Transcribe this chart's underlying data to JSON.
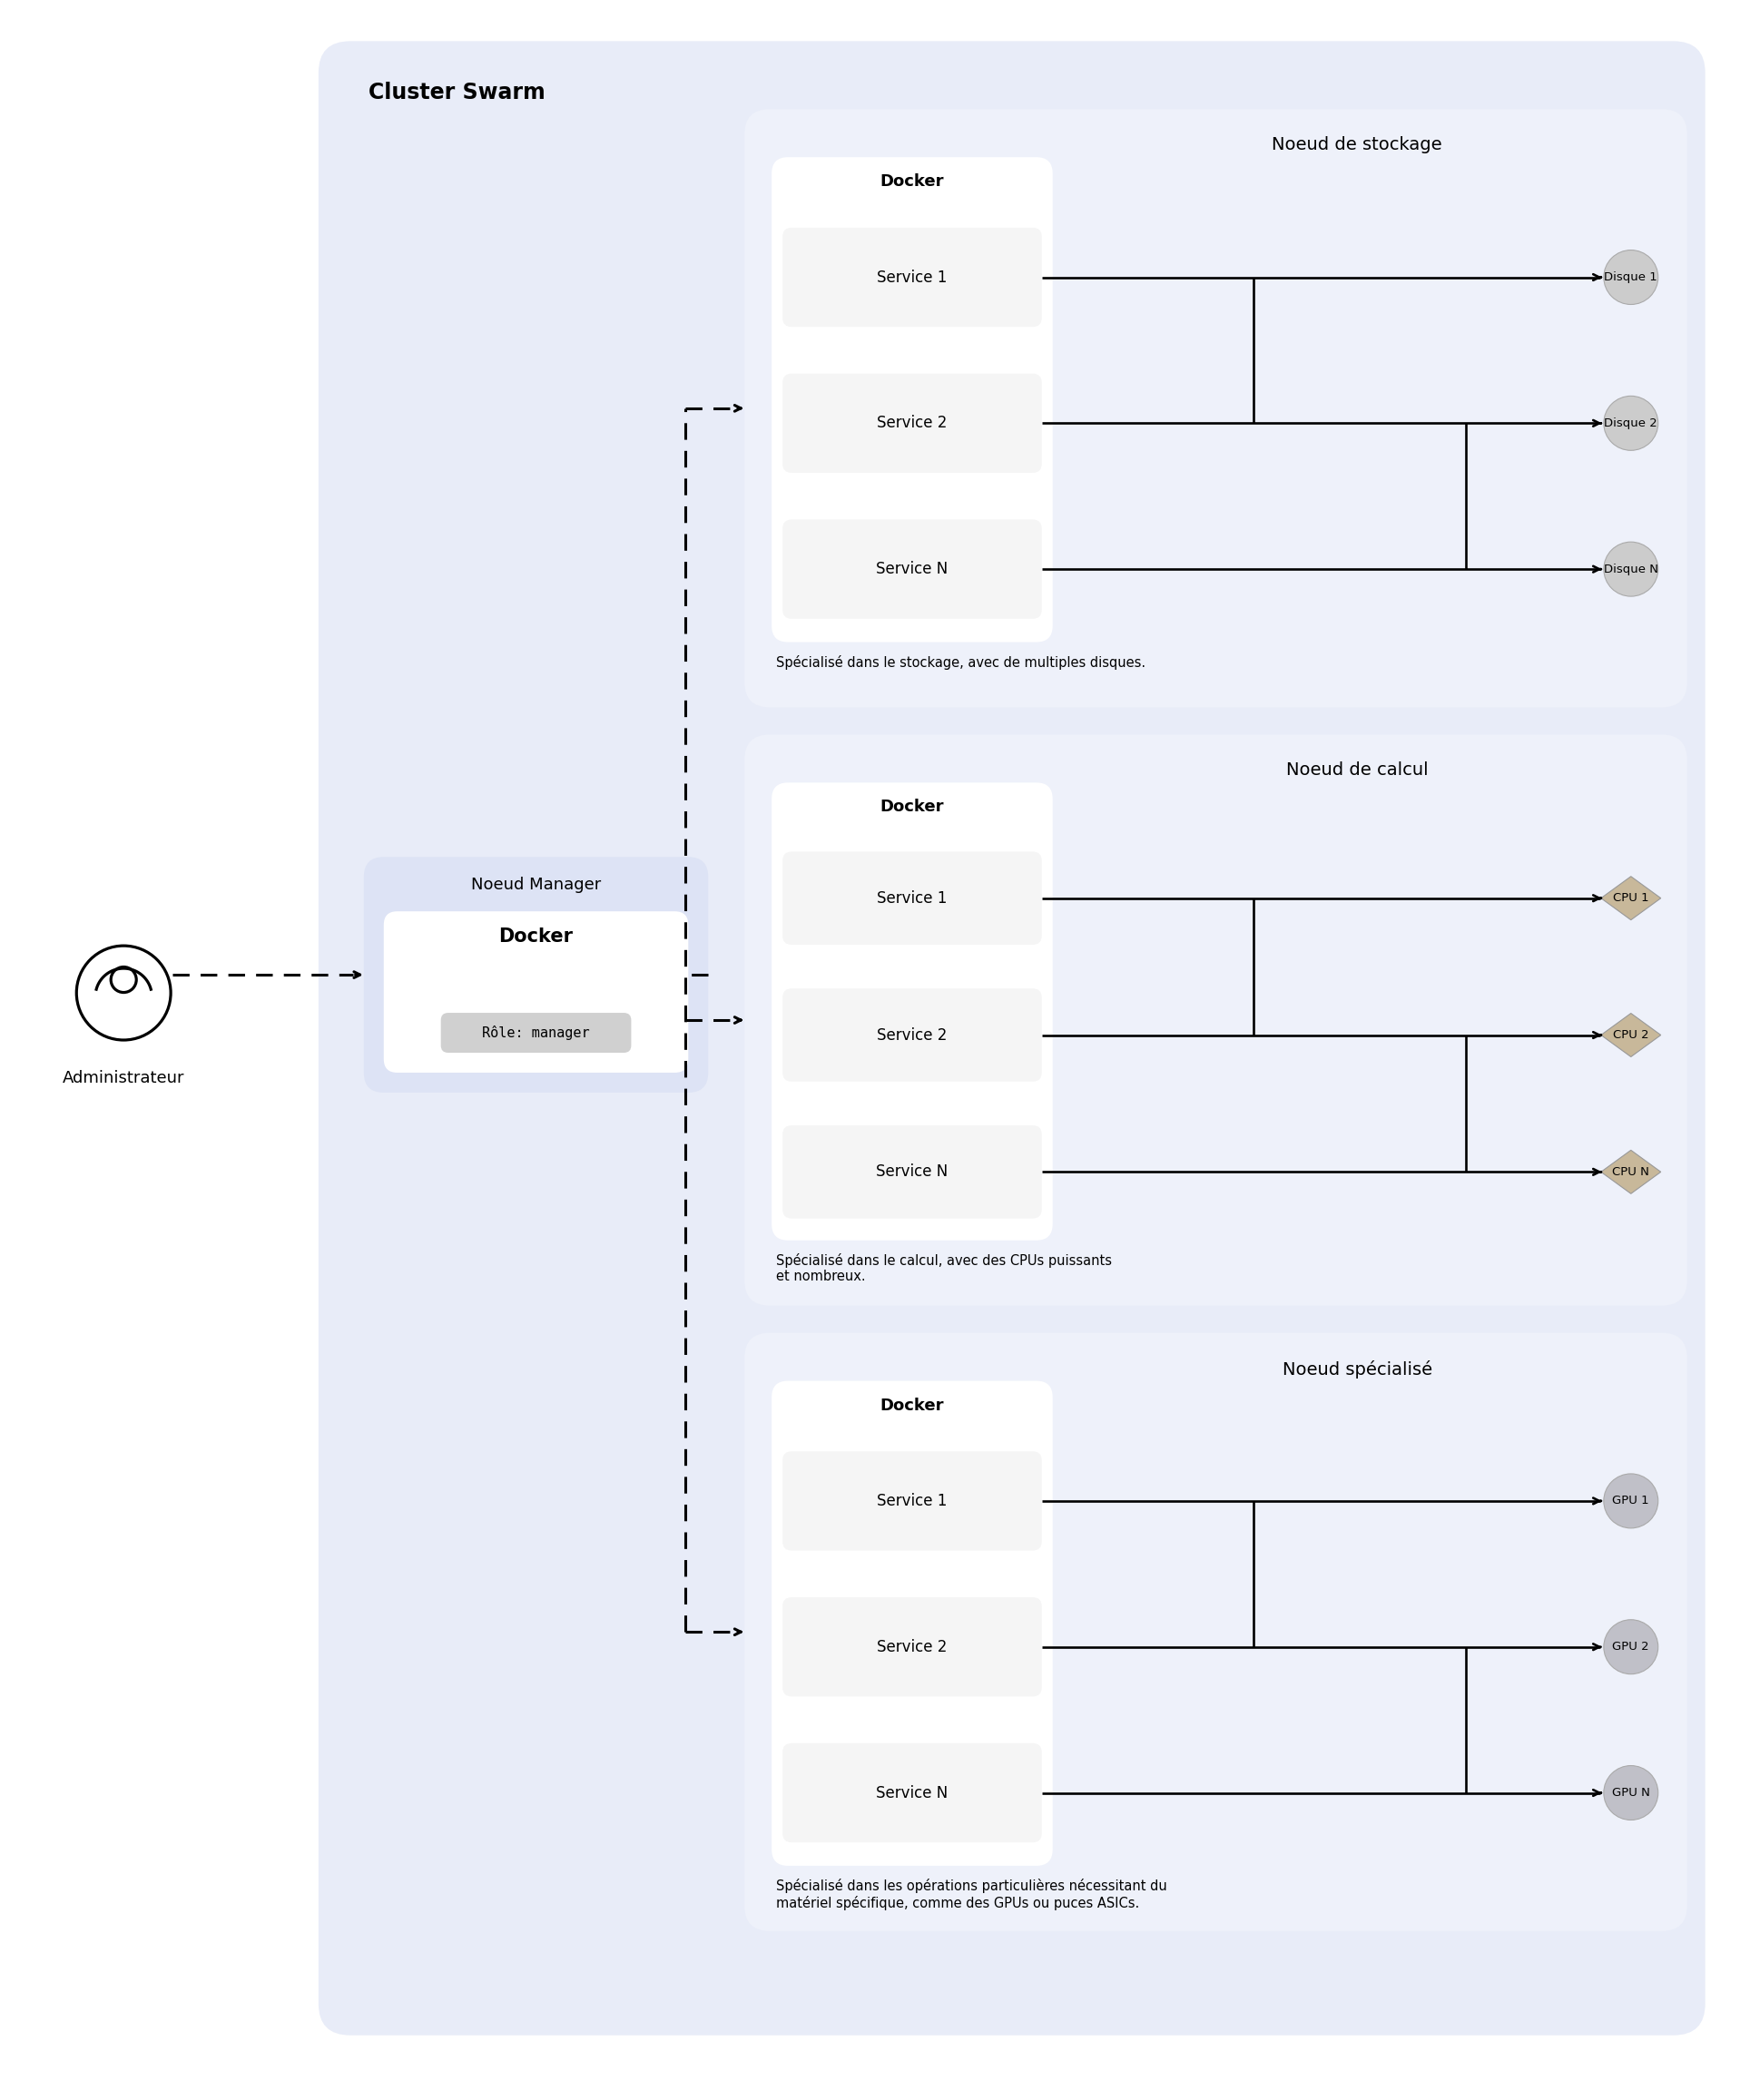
{
  "fig_width": 19.28,
  "fig_height": 23.14,
  "bg_color": "#ffffff",
  "cluster_bg": "#e8ecf8",
  "node_bg": "#eef1fa",
  "docker_bg": "#ffffff",
  "inner_service_bg": "#f5f5f5",
  "disk_color": "#cccccc",
  "cpu_color": "#c8b89a",
  "gpu_color": "#c0c0c8",
  "manager_bg": "#e8ecf8",
  "role_badge_bg": "#d0d0d0",
  "cluster_title": "Cluster Swarm",
  "admin_label": "Administrateur",
  "manager_title": "Noeud Manager",
  "manager_docker": "Docker",
  "manager_role": "Rôle: manager",
  "node1_title": "Noeud de stockage",
  "node1_docker": "Docker",
  "node1_services": [
    "Service 1",
    "Service 2",
    "Service N"
  ],
  "node1_resources": [
    "Disque 1",
    "Disque 2",
    "Disque N"
  ],
  "node1_desc": "Spécialisé dans le stockage, avec de multiples disques.",
  "node2_title": "Noeud de calcul",
  "node2_docker": "Docker",
  "node2_services": [
    "Service 1",
    "Service 2",
    "Service N"
  ],
  "node2_resources": [
    "CPU 1",
    "CPU 2",
    "CPU N"
  ],
  "node2_desc": "Spécialisé dans le calcul, avec des CPUs puissants\net nombreux.",
  "node3_title": "Noeud spécialisé",
  "node3_docker": "Docker",
  "node3_services": [
    "Service 1",
    "Service 2",
    "Service N"
  ],
  "node3_resources": [
    "GPU 1",
    "GPU 2",
    "GPU N"
  ],
  "node3_desc": "Spécialisé dans les opérations particulières nécessitant du\nmatériel spécifique, comme des GPUs ou puces ASICs."
}
